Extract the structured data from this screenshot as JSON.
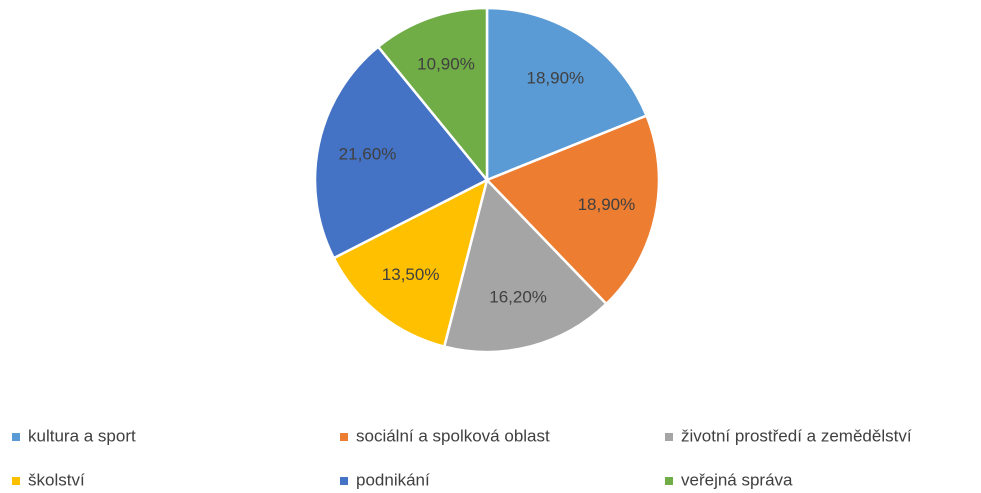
{
  "chart_data": {
    "type": "pie",
    "categories": [
      "kultura a sport",
      "sociální a spolková oblast",
      "životní prostředí a zemědělství",
      "školství",
      "podnikání",
      "veřejná správa"
    ],
    "values": [
      18.9,
      18.9,
      16.2,
      13.5,
      21.6,
      10.9
    ],
    "value_labels": [
      "18,90%",
      "18,90%",
      "16,20%",
      "13,50%",
      "21,60%",
      "10,90%"
    ],
    "colors": [
      "#5b9bd5",
      "#ed7d31",
      "#a5a5a5",
      "#ffc000",
      "#4472c4",
      "#70ad47"
    ],
    "legend": "bottom"
  }
}
